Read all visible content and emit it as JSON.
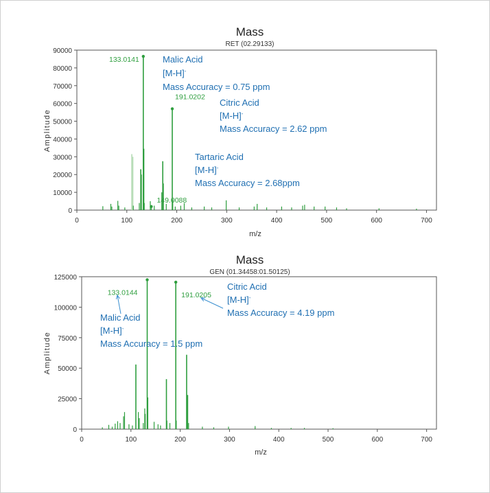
{
  "chart_data": [
    {
      "type": "bar",
      "title": "Mass",
      "subtitle": "RET (02.29133)",
      "xlabel": "m/z",
      "ylabel": "Amplitude",
      "xlim": [
        0,
        720
      ],
      "ylim": [
        0,
        90000
      ],
      "xticks": [
        0,
        100,
        200,
        300,
        400,
        500,
        600,
        700
      ],
      "yticks": [
        0,
        10000,
        20000,
        30000,
        40000,
        50000,
        60000,
        70000,
        80000,
        90000
      ],
      "grid": false,
      "colors": {
        "main": "#2e9e3e",
        "light": "#b6dcb6",
        "annotation": "#1f6fb2",
        "label": "#2e9e3e"
      },
      "peaks": [
        {
          "mz": 52,
          "a": 2200
        },
        {
          "mz": 68,
          "a": 3500
        },
        {
          "mz": 70,
          "a": 2000
        },
        {
          "mz": 82,
          "a": 5200
        },
        {
          "mz": 84,
          "a": 2500
        },
        {
          "mz": 96,
          "a": 1500
        },
        {
          "mz": 110,
          "a": 31500
        },
        {
          "mz": 112,
          "a": 30000
        },
        {
          "mz": 113,
          "a": 2500
        },
        {
          "mz": 125,
          "a": 4000
        },
        {
          "mz": 128,
          "a": 23000
        },
        {
          "mz": 129,
          "a": 20000
        },
        {
          "mz": 133.0141,
          "a": 86500
        },
        {
          "mz": 134,
          "a": 34500
        },
        {
          "mz": 135,
          "a": 4000
        },
        {
          "mz": 147,
          "a": 5000
        },
        {
          "mz": 149.0088,
          "a": 2000
        },
        {
          "mz": 155,
          "a": 2500
        },
        {
          "mz": 170,
          "a": 10000
        },
        {
          "mz": 172,
          "a": 27500
        },
        {
          "mz": 173,
          "a": 15000
        },
        {
          "mz": 179,
          "a": 3500
        },
        {
          "mz": 191.0202,
          "a": 57000
        },
        {
          "mz": 192,
          "a": 6000
        },
        {
          "mz": 197,
          "a": 2000
        },
        {
          "mz": 208,
          "a": 2500
        },
        {
          "mz": 215,
          "a": 4000
        },
        {
          "mz": 230,
          "a": 1500
        },
        {
          "mz": 255,
          "a": 2000
        },
        {
          "mz": 270,
          "a": 1500
        },
        {
          "mz": 299,
          "a": 5500
        },
        {
          "mz": 325,
          "a": 1500
        },
        {
          "mz": 355,
          "a": 2000
        },
        {
          "mz": 361,
          "a": 3500
        },
        {
          "mz": 380,
          "a": 1500
        },
        {
          "mz": 410,
          "a": 2000
        },
        {
          "mz": 430,
          "a": 1500
        },
        {
          "mz": 452,
          "a": 2500
        },
        {
          "mz": 456,
          "a": 3000
        },
        {
          "mz": 475,
          "a": 2000
        },
        {
          "mz": 497,
          "a": 2000
        },
        {
          "mz": 520,
          "a": 1500
        },
        {
          "mz": 540,
          "a": 1000
        },
        {
          "mz": 605,
          "a": 1000
        },
        {
          "mz": 680,
          "a": 800
        }
      ],
      "peak_labels": [
        {
          "mz": 133.0141,
          "a": 86500,
          "text": "133.0141"
        },
        {
          "mz": 191.0202,
          "a": 57000,
          "text": "191.0202"
        },
        {
          "mz": 149.0088,
          "a": 2000,
          "text": "149.0088"
        }
      ],
      "annotations": [
        {
          "name": "malic",
          "lines": [
            "Malic Acid",
            "[M-H]",
            "Mass Accuracy = 0.75 ppm"
          ]
        },
        {
          "name": "citric",
          "lines": [
            "Citric Acid",
            "[M-H]",
            "Mass Accuracy = 2.62 ppm"
          ]
        },
        {
          "name": "tartaric",
          "lines": [
            "Tartaric Acid",
            "[M-H]",
            "Mass Accuracy = 2.68ppm"
          ]
        }
      ],
      "superscript": "-"
    },
    {
      "type": "bar",
      "title": "Mass",
      "subtitle": "GEN (01.34458:01.50125)",
      "xlabel": "m/z",
      "ylabel": "Amplitude",
      "xlim": [
        0,
        720
      ],
      "ylim": [
        0,
        125000
      ],
      "xticks": [
        0,
        100,
        200,
        300,
        400,
        500,
        600,
        700
      ],
      "yticks": [
        0,
        25000,
        50000,
        75000,
        100000,
        125000
      ],
      "grid": false,
      "colors": {
        "main": "#2e9e3e",
        "light": "#b6dcb6",
        "annotation": "#1f6fb2",
        "label": "#2e9e3e"
      },
      "peaks": [
        {
          "mz": 42,
          "a": 1500
        },
        {
          "mz": 55,
          "a": 3500
        },
        {
          "mz": 62,
          "a": 2000
        },
        {
          "mz": 68,
          "a": 4500
        },
        {
          "mz": 73,
          "a": 6500
        },
        {
          "mz": 78,
          "a": 5000
        },
        {
          "mz": 85,
          "a": 10500
        },
        {
          "mz": 87,
          "a": 14000
        },
        {
          "mz": 96,
          "a": 4000
        },
        {
          "mz": 103,
          "a": 3000
        },
        {
          "mz": 110,
          "a": 53000
        },
        {
          "mz": 115,
          "a": 14000
        },
        {
          "mz": 117,
          "a": 9000
        },
        {
          "mz": 125,
          "a": 5000
        },
        {
          "mz": 128,
          "a": 17000
        },
        {
          "mz": 129,
          "a": 12500
        },
        {
          "mz": 133.0144,
          "a": 122500
        },
        {
          "mz": 134,
          "a": 26000
        },
        {
          "mz": 147,
          "a": 6000
        },
        {
          "mz": 155,
          "a": 4000
        },
        {
          "mz": 160,
          "a": 3000
        },
        {
          "mz": 172,
          "a": 41000
        },
        {
          "mz": 173,
          "a": 7000
        },
        {
          "mz": 179,
          "a": 5000
        },
        {
          "mz": 191.0205,
          "a": 120500
        },
        {
          "mz": 192,
          "a": 7000
        },
        {
          "mz": 213,
          "a": 61000
        },
        {
          "mz": 215,
          "a": 28000
        },
        {
          "mz": 217,
          "a": 5000
        },
        {
          "mz": 245,
          "a": 2000
        },
        {
          "mz": 268,
          "a": 1500
        },
        {
          "mz": 298,
          "a": 2000
        },
        {
          "mz": 352,
          "a": 2500
        },
        {
          "mz": 385,
          "a": 1000
        },
        {
          "mz": 425,
          "a": 1000
        },
        {
          "mz": 452,
          "a": 1000
        },
        {
          "mz": 510,
          "a": 800
        }
      ],
      "peak_labels": [
        {
          "mz": 133.0144,
          "a": 122500,
          "text": "133.0144"
        },
        {
          "mz": 191.0205,
          "a": 120500,
          "text": "191.0205"
        }
      ],
      "annotations": [
        {
          "name": "malic",
          "lines": [
            "Malic Acid",
            "[M-H]",
            "Mass Accuracy = 1.5 ppm"
          ]
        },
        {
          "name": "citric",
          "lines": [
            "Citric Acid",
            "[M-H]",
            "Mass Accuracy = 4.19 ppm"
          ]
        }
      ],
      "superscript": "-"
    }
  ]
}
